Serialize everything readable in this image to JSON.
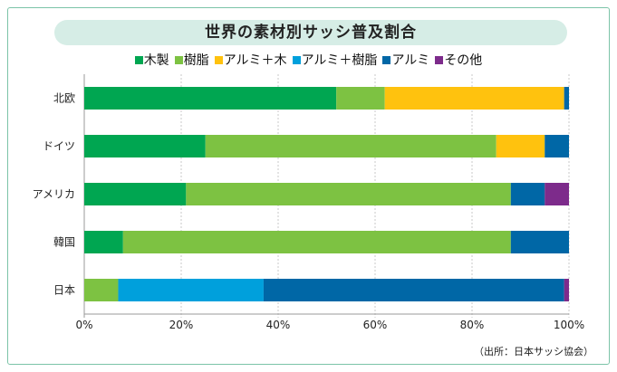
{
  "chart_data": {
    "type": "bar",
    "orientation": "horizontal",
    "stacked": true,
    "title": "世界の素材別サッシ普及割合",
    "categories": [
      "北欧",
      "ドイツ",
      "アメリカ",
      "韓国",
      "日本"
    ],
    "series": [
      {
        "name": "木製",
        "color": "#00a651",
        "values": [
          52,
          25,
          21,
          8,
          0
        ]
      },
      {
        "name": "樹脂",
        "color": "#7dc242",
        "values": [
          10,
          60,
          67,
          80,
          7
        ]
      },
      {
        "name": "アルミ＋木",
        "color": "#ffc20e",
        "values": [
          37,
          10,
          0,
          0,
          0
        ]
      },
      {
        "name": "アルミ＋樹脂",
        "color": "#00a0dc",
        "values": [
          0,
          0,
          0,
          0,
          30
        ]
      },
      {
        "name": "アルミ",
        "color": "#0067a6",
        "values": [
          1,
          5,
          7,
          12,
          62
        ]
      },
      {
        "name": "その他",
        "color": "#7d2b8b",
        "values": [
          0,
          0,
          5,
          0,
          1
        ]
      }
    ],
    "x_ticks": [
      "0%",
      "20%",
      "40%",
      "60%",
      "80%",
      "100%"
    ],
    "xlim": [
      0,
      100
    ],
    "grid": true,
    "source": "（出所：日本サッシ協会）"
  }
}
